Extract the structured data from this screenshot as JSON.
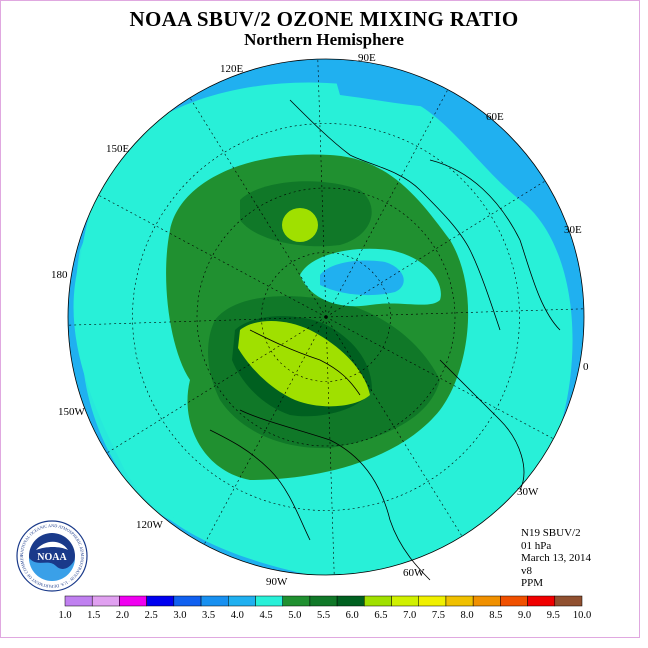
{
  "title": "NOAA SBUV/2 OZONE MIXING RATIO",
  "subtitle": "Northern Hemisphere",
  "longitude_labels": [
    "90E",
    "60E",
    "30E",
    "0",
    "30W",
    "60W",
    "90W",
    "120W",
    "150W",
    "180",
    "150E",
    "120E"
  ],
  "info": {
    "satellite": "N19 SBUV/2",
    "level": "01 hPa",
    "date": "March 13, 2014",
    "version": "v8",
    "units": "PPM"
  },
  "logo": {
    "text": "NOAA",
    "ring_text": "NATIONAL OCEANIC AND ATMOSPHERIC ADMINISTRATION · U.S. DEPARTMENT OF COMMERCE"
  },
  "colorbar": {
    "labels": [
      "1.0",
      "1.5",
      "2.0",
      "2.5",
      "3.0",
      "3.5",
      "4.0",
      "4.5",
      "5.0",
      "5.5",
      "6.0",
      "6.5",
      "7.0",
      "7.5",
      "8.0",
      "8.5",
      "9.0",
      "9.5",
      "10.0"
    ],
    "colors": [
      "#c080f0",
      "#e0a0f0",
      "#f000f0",
      "#0000f0",
      "#1060f0",
      "#1890f0",
      "#20b0f0",
      "#28f0d8",
      "#209030",
      "#107828",
      "#006020",
      "#a0e000",
      "#d0f000",
      "#f0f000",
      "#f0c000",
      "#f09000",
      "#f05000",
      "#f00000",
      "#905030"
    ]
  },
  "map_colors": {
    "ocean_blue": "#20b0f0",
    "cyan": "#28f0d8",
    "dark_green_1": "#209030",
    "dark_green_2": "#107828",
    "dark_green_3": "#006020",
    "yellow_green": "#a0e000",
    "light_blue": "#1890f0"
  }
}
